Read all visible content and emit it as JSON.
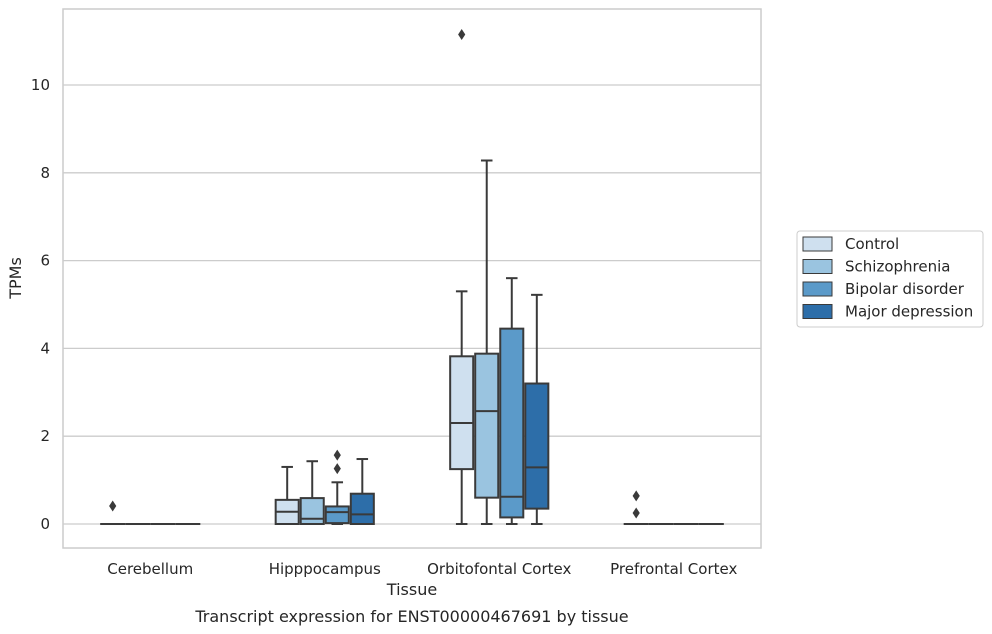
{
  "chart_data": {
    "type": "box",
    "caption": "Transcript expression for ENST00000467691 by tissue",
    "xlabel": "Tissue",
    "ylabel": "TPMs",
    "ylim": [
      -0.55,
      11.55
    ],
    "yticks": [
      0,
      2,
      4,
      6,
      8,
      10
    ],
    "grid": "horizontal",
    "legend_position": "right",
    "categories": [
      "Cerebellum",
      "Hipppocampus",
      "Orbitofontal Cortex",
      "Prefrontal Cortex"
    ],
    "series": [
      {
        "name": "Control",
        "color": "#cfe0ef",
        "boxes": [
          {
            "whislo": 0,
            "q1": 0,
            "med": 0,
            "q3": 0,
            "whishi": 0,
            "fliers": [
              0.41
            ]
          },
          {
            "whislo": 0,
            "q1": 0,
            "med": 0.28,
            "q3": 0.55,
            "whishi": 1.3,
            "fliers": []
          },
          {
            "whislo": 0,
            "q1": 1.25,
            "med": 2.3,
            "q3": 3.82,
            "whishi": 5.3,
            "fliers": [
              11.15
            ]
          },
          {
            "whislo": 0,
            "q1": 0,
            "med": 0,
            "q3": 0,
            "whishi": 0,
            "fliers": [
              0.64,
              0.25
            ]
          }
        ]
      },
      {
        "name": "Schizophrenia",
        "color": "#9ac4e0",
        "boxes": [
          {
            "whislo": 0,
            "q1": 0,
            "med": 0,
            "q3": 0,
            "whishi": 0,
            "fliers": []
          },
          {
            "whislo": 0,
            "q1": 0,
            "med": 0.12,
            "q3": 0.59,
            "whishi": 1.43,
            "fliers": []
          },
          {
            "whislo": 0,
            "q1": 0.6,
            "med": 2.57,
            "q3": 3.88,
            "whishi": 8.28,
            "fliers": []
          },
          {
            "whislo": 0,
            "q1": 0,
            "med": 0,
            "q3": 0,
            "whishi": 0,
            "fliers": []
          }
        ]
      },
      {
        "name": "Bipolar disorder",
        "color": "#5b9ac9",
        "boxes": [
          {
            "whislo": 0,
            "q1": 0,
            "med": 0,
            "q3": 0,
            "whishi": 0,
            "fliers": []
          },
          {
            "whislo": 0,
            "q1": 0.02,
            "med": 0.27,
            "q3": 0.4,
            "whishi": 0.95,
            "fliers": [
              1.57,
              1.26
            ]
          },
          {
            "whislo": 0,
            "q1": 0.15,
            "med": 0.62,
            "q3": 4.45,
            "whishi": 5.6,
            "fliers": []
          },
          {
            "whislo": 0,
            "q1": 0,
            "med": 0,
            "q3": 0,
            "whishi": 0,
            "fliers": []
          }
        ]
      },
      {
        "name": "Major depression",
        "color": "#2d6ea9",
        "boxes": [
          {
            "whislo": 0,
            "q1": 0,
            "med": 0,
            "q3": 0,
            "whishi": 0,
            "fliers": []
          },
          {
            "whislo": 0,
            "q1": 0,
            "med": 0.22,
            "q3": 0.69,
            "whishi": 1.48,
            "fliers": []
          },
          {
            "whislo": 0,
            "q1": 0.35,
            "med": 1.29,
            "q3": 3.2,
            "whishi": 5.22,
            "fliers": []
          },
          {
            "whislo": 0,
            "q1": 0,
            "med": 0,
            "q3": 0,
            "whishi": 0,
            "fliers": []
          }
        ]
      }
    ]
  }
}
